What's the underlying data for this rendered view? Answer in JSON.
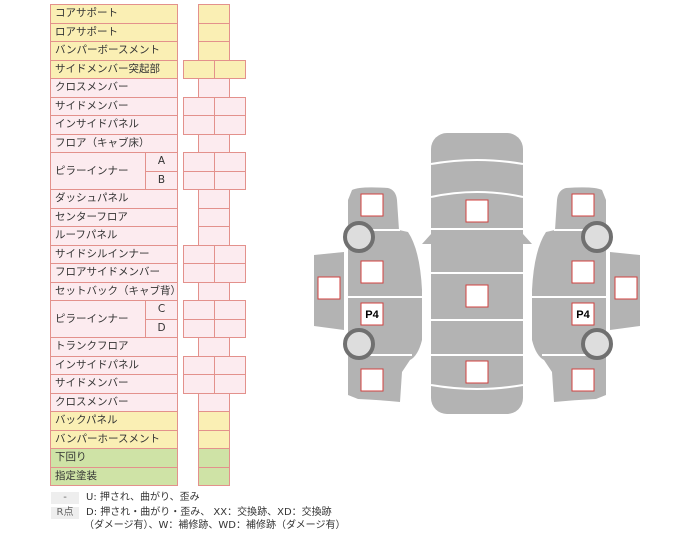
{
  "colors": {
    "yellow": "#faefb4",
    "pink": "#fcebef",
    "green": "#cfe3a6",
    "border": "#e3918c",
    "car_gray": "#b3b3b3",
    "mark_red": "#d0413f"
  },
  "table": {
    "rows": [
      {
        "label": "コアサポート",
        "tone": "yellow",
        "cells": 1
      },
      {
        "label": "ロアサポート",
        "tone": "yellow",
        "cells": 1
      },
      {
        "label": "バンパーボースメント",
        "tone": "yellow",
        "cells": 1
      },
      {
        "label": "サイドメンバー突起部",
        "tone": "yellow",
        "cells": 2
      },
      {
        "label": "クロスメンバー",
        "tone": "pink",
        "cells": 1
      },
      {
        "label": "サイドメンバー",
        "tone": "pink",
        "cells": 2
      },
      {
        "label": "インサイドパネル",
        "tone": "pink",
        "cells": 2
      },
      {
        "label": "フロア（キャブ床）",
        "tone": "pink",
        "cells": 1
      },
      {
        "label": "ピラーインナー",
        "sub": "A",
        "tone": "pink",
        "cells": 2
      },
      {
        "label": "",
        "sub": "B",
        "tone": "pink",
        "cells": 2
      },
      {
        "label": "ダッシュパネル",
        "tone": "pink",
        "cells": 1
      },
      {
        "label": "センターフロア",
        "tone": "pink",
        "cells": 1
      },
      {
        "label": "ルーフパネル",
        "tone": "pink",
        "cells": 1
      },
      {
        "label": "サイドシルインナー",
        "tone": "pink",
        "cells": 2
      },
      {
        "label": "フロアサイドメンバー",
        "tone": "pink",
        "cells": 2
      },
      {
        "label": "セットバック（キャブ背）",
        "tone": "pink",
        "cells": 1
      },
      {
        "label": "ピラーインナー",
        "sub": "C",
        "tone": "pink",
        "cells": 2
      },
      {
        "label": "",
        "sub": "D",
        "tone": "pink",
        "cells": 2
      },
      {
        "label": "トランクフロア",
        "tone": "pink",
        "cells": 1
      },
      {
        "label": "インサイドパネル",
        "tone": "pink",
        "cells": 2
      },
      {
        "label": "サイドメンバー",
        "tone": "pink",
        "cells": 2
      },
      {
        "label": "クロスメンバー",
        "tone": "pink",
        "cells": 1
      },
      {
        "label": "バックパネル",
        "tone": "yellow",
        "cells": 1
      },
      {
        "label": "バンパーホースメント",
        "tone": "yellow",
        "cells": 1
      },
      {
        "label": "下回り",
        "tone": "green",
        "cells": 1
      },
      {
        "label": "指定塗装",
        "tone": "green",
        "cells": 1
      }
    ]
  },
  "diagram": {
    "left_p4": "P4",
    "right_p4": "P4"
  },
  "legend": [
    {
      "key": "-",
      "text": "U: 押され、曲がり、歪み"
    },
    {
      "key": "R点",
      "text": "D: 押され・曲がり・歪み、 XX：交換跡、XD：交換跡",
      "text2": "（ダメージ有）、W：補修跡、WD：補修跡（ダメージ有）"
    }
  ]
}
